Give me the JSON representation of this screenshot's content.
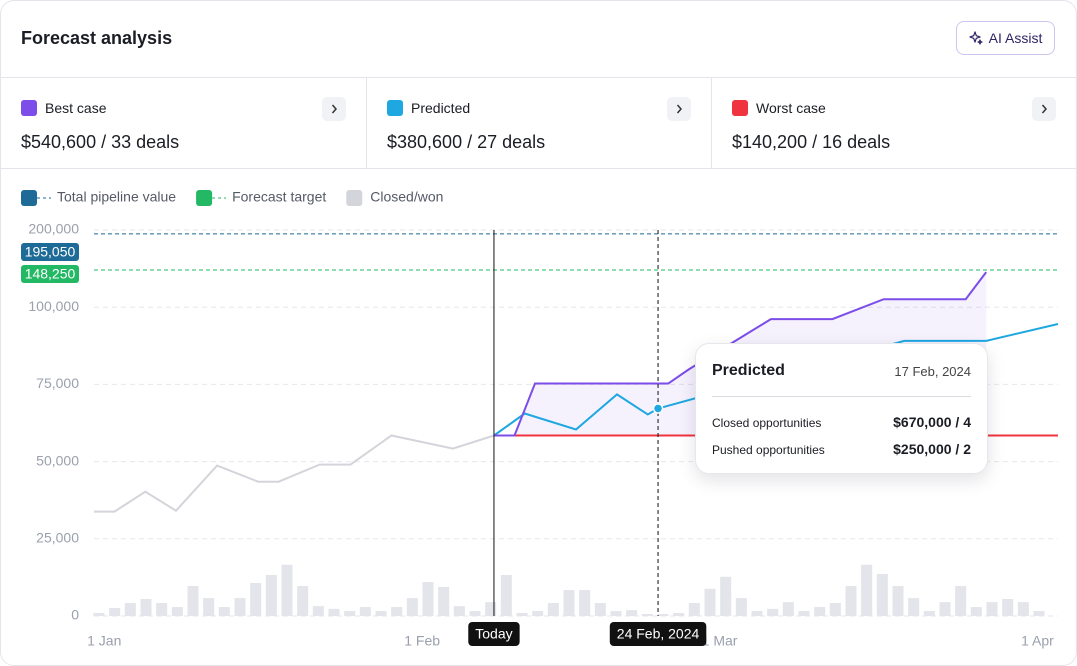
{
  "header": {
    "title": "Forecast analysis",
    "button": "AI Assist"
  },
  "chart_data": {
    "type": "line",
    "series": [
      {
        "name": "Best case",
        "total": "$540,600 / 33 deals",
        "color": "#7c4de8",
        "x": [
          "2024-02-08",
          "2024-02-10",
          "2024-02-12",
          "2024-02-25",
          "2024-02-27",
          "2024-03-06",
          "2024-03-12",
          "2024-03-17",
          "2024-03-25",
          "2024-03-27"
        ],
        "values": [
          58440,
          58440,
          75300,
          75300,
          79870,
          96150,
          96150,
          110390,
          110390,
          145450
        ]
      },
      {
        "name": "Predicted",
        "total": "$380,600 / 27 deals",
        "color": "#1ea7e0",
        "x": [
          "2024-02-08",
          "2024-02-11",
          "2024-02-16",
          "2024-02-20",
          "2024-02-23",
          "2024-02-24",
          "2024-03-19",
          "2024-03-27",
          "2024-04-03"
        ],
        "values": [
          58440,
          65580,
          60390,
          71750,
          65260,
          67210,
          89100,
          89100,
          94550
        ]
      },
      {
        "name": "Worst case",
        "total": "$140,200 / 16 deals",
        "color": "#f0343f",
        "x": [
          "2024-02-08",
          "2024-04-03"
        ],
        "values": [
          58440,
          58440
        ]
      }
    ],
    "closed_won": {
      "name": "Closed/won",
      "color": "#d3d5db",
      "bar_color": "#e3e5eb",
      "x": [
        "2023-12-31",
        "2024-01-02",
        "2024-01-05",
        "2024-01-08",
        "2024-01-12",
        "2024-01-16",
        "2024-01-18",
        "2024-01-22",
        "2024-01-25",
        "2024-01-29",
        "2024-02-04",
        "2024-02-08"
      ],
      "values": [
        33800,
        33800,
        40260,
        34090,
        48700,
        43500,
        43500,
        49030,
        49030,
        58440,
        54220,
        58440
      ],
      "bars": [
        970,
        2600,
        4200,
        5500,
        4200,
        2900,
        9700,
        5800,
        2900,
        5800,
        10700,
        13300,
        16600,
        9700,
        3200,
        2300,
        1600,
        2900,
        1600,
        2900,
        5800,
        11000,
        9400,
        3200,
        1600,
        4500,
        13300,
        970,
        1600,
        4200,
        8400,
        8400,
        4200,
        1600,
        1900,
        650,
        650,
        970,
        4200,
        8800,
        12700,
        5800,
        1600,
        2300,
        4500,
        1600,
        2900,
        4200,
        9700,
        16600,
        13600,
        9700,
        5800,
        1600,
        4500,
        9700,
        2900,
        4500,
        5500,
        4500,
        1600
      ]
    },
    "reference_lines": [
      {
        "name": "Total pipeline value",
        "color": "#1d6b96",
        "value": 195050,
        "value_label": "195,050"
      },
      {
        "name": "Forecast target",
        "color": "#22b864",
        "value": 148250,
        "value_label": "148,250"
      }
    ],
    "xlim": [
      "2023-12-31",
      "2024-04-03"
    ],
    "xticks": [
      {
        "value": "2024-01-01",
        "label": "1 Jan"
      },
      {
        "value": "2024-02-01",
        "label": "1 Feb"
      },
      {
        "value": "2024-03-01",
        "label": "1 Mar"
      },
      {
        "value": "2024-04-01",
        "label": "1 Apr"
      }
    ],
    "ylim": [
      0,
      200000
    ],
    "yticks": [
      0,
      {
        "value": 25000,
        "label": "25,000"
      },
      {
        "value": 50000,
        "label": "50,000"
      },
      {
        "value": 75000,
        "label": "75,000"
      },
      {
        "value": 100000,
        "label": "100,000"
      },
      {
        "value": 200000,
        "label": "200,000"
      }
    ],
    "grid": true,
    "markers": [
      {
        "label": "Today",
        "x": "2024-02-08",
        "style": "solid"
      },
      {
        "label": "24 Feb, 2024",
        "x": "2024-02-24",
        "style": "dashed"
      }
    ],
    "tooltip": {
      "title": "Predicted",
      "date": "17 Feb, 2024",
      "rows": [
        {
          "label": "Closed opportunities",
          "value": "$670,000 / 4"
        },
        {
          "label": "Pushed opportunities",
          "value": "$250,000 / 2"
        }
      ]
    }
  }
}
